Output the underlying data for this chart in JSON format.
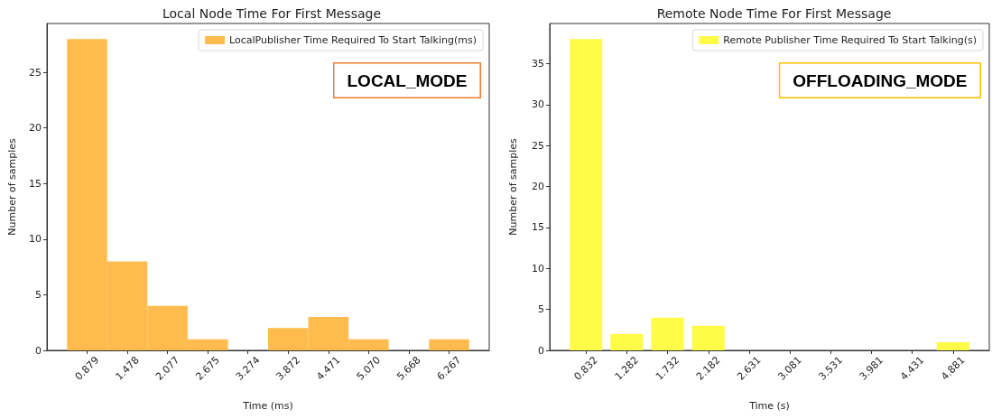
{
  "chart_data": [
    {
      "type": "histogram",
      "title": "Local Node Time For First Message",
      "xlabel": "Time (ms)",
      "ylabel": "Number of samples",
      "bins": [
        0.58,
        1.178,
        1.777,
        2.376,
        2.975,
        3.573,
        4.172,
        4.771,
        5.369,
        5.968,
        6.566
      ],
      "series": [
        {
          "name": "LocalPublisher Time Required To Start Talking(ms)",
          "color": "#ffbb4d",
          "values": [
            28,
            8,
            4,
            1,
            0,
            2,
            3,
            1,
            0,
            1
          ]
        }
      ],
      "xlim": [
        0.281,
        6.865
      ],
      "xticks": [
        0.879,
        1.478,
        2.077,
        2.675,
        3.274,
        3.872,
        4.471,
        {
          "value": 5.07,
          "label": "5.070"
        },
        5.668,
        6.267
      ],
      "ylim": [
        0,
        29.4
      ],
      "yticks": [
        0,
        5,
        10,
        15,
        20,
        25
      ],
      "legend": "top right",
      "annotations": [
        "LOCAL_MODE"
      ]
    },
    {
      "type": "histogram",
      "title": "Remote Node Time For First Message",
      "xlabel": "Time (s)",
      "ylabel": "Number of samples",
      "bins": [
        0.607,
        1.057,
        1.507,
        1.957,
        2.407,
        2.856,
        3.306,
        3.756,
        4.206,
        4.656,
        5.106
      ],
      "series": [
        {
          "name": "Remote Publisher Time Required To Start Talking(s)",
          "color": "#fffb47",
          "values": [
            38,
            2,
            4,
            3,
            0,
            0,
            0,
            0,
            0,
            1
          ]
        }
      ],
      "xlim": [
        0.432,
        5.281
      ],
      "xticks": [
        0.832,
        1.282,
        1.732,
        2.182,
        2.631,
        3.081,
        3.531,
        3.981,
        4.431,
        4.881
      ],
      "ylim": [
        0,
        39.9
      ],
      "yticks": [
        0,
        5,
        10,
        15,
        20,
        25,
        30,
        35
      ],
      "legend": "top right",
      "annotations": [
        "OFFLOADING_MODE"
      ]
    }
  ]
}
